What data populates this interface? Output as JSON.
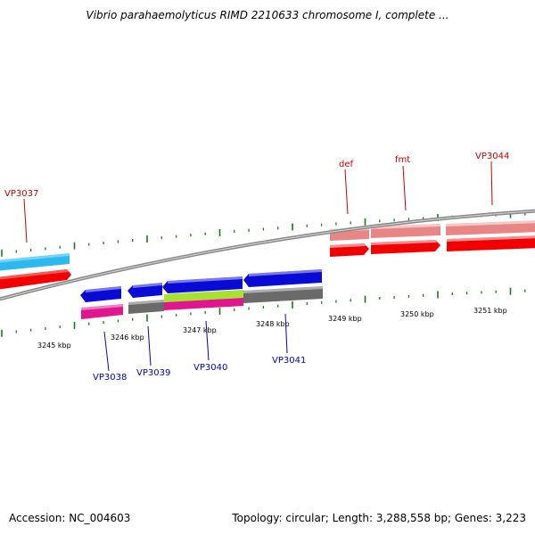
{
  "map_title": "Vibrio parahaemolyticus RIMD 2210633 chromosome I, complete ...",
  "footer": {
    "accession": "Accession: NC_004603",
    "summary": "Topology: circular; Length: 3,288,558 bp; Genes: 3,223"
  },
  "colors": {
    "backbone": "#8a8a8a",
    "tick": "#1a7a1a",
    "plus_label": "#cc0000",
    "minus_label": "#0000cc",
    "red": "#f20000",
    "pink_light": "#e98585",
    "cyan": "#2db8ee",
    "blue": "#0a0ad6",
    "magenta": "#e0158f",
    "gray": "#6a6a6a",
    "lime": "#a6e22e"
  },
  "scale_labels": [
    "3245 kbp",
    "3246 kbp",
    "3247 kbp",
    "3248 kbp",
    "3249 kbp",
    "3250 kbp",
    "3251 kbp"
  ],
  "gene_labels": {
    "plus": [
      "VP3037",
      "def",
      "fmt",
      "VP3044"
    ],
    "minus": [
      "VP3038",
      "VP3039",
      "VP3040",
      "VP3041"
    ]
  }
}
